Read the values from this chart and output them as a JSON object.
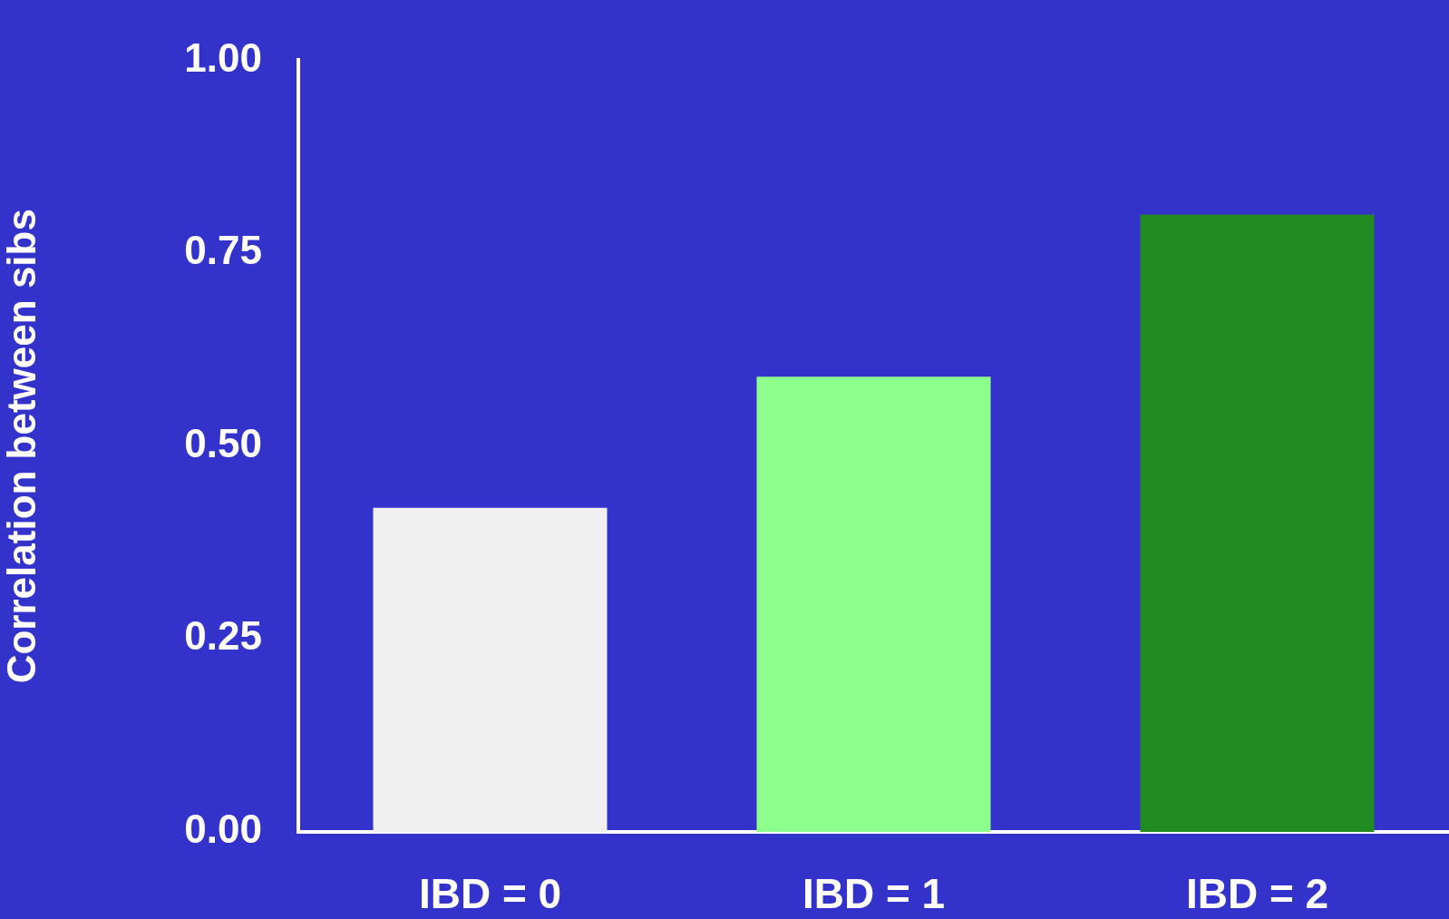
{
  "chart_data": {
    "type": "bar",
    "ylabel": "Correlation between sibs",
    "categories": [
      "IBD = 0",
      "IBD = 1",
      "IBD = 2"
    ],
    "values": [
      0.42,
      0.59,
      0.8
    ],
    "colors": [
      "#f0f0f0",
      "#8cff8c",
      "#228b22"
    ],
    "ylim": [
      0,
      1
    ],
    "yticks": [
      {
        "value": 0,
        "label": "0.00"
      },
      {
        "value": 0.25,
        "label": "0.25"
      },
      {
        "value": 0.5,
        "label": "0.50"
      },
      {
        "value": 0.75,
        "label": "0.75"
      },
      {
        "value": 1,
        "label": "1.00"
      }
    ],
    "grid": false,
    "legend": false
  }
}
